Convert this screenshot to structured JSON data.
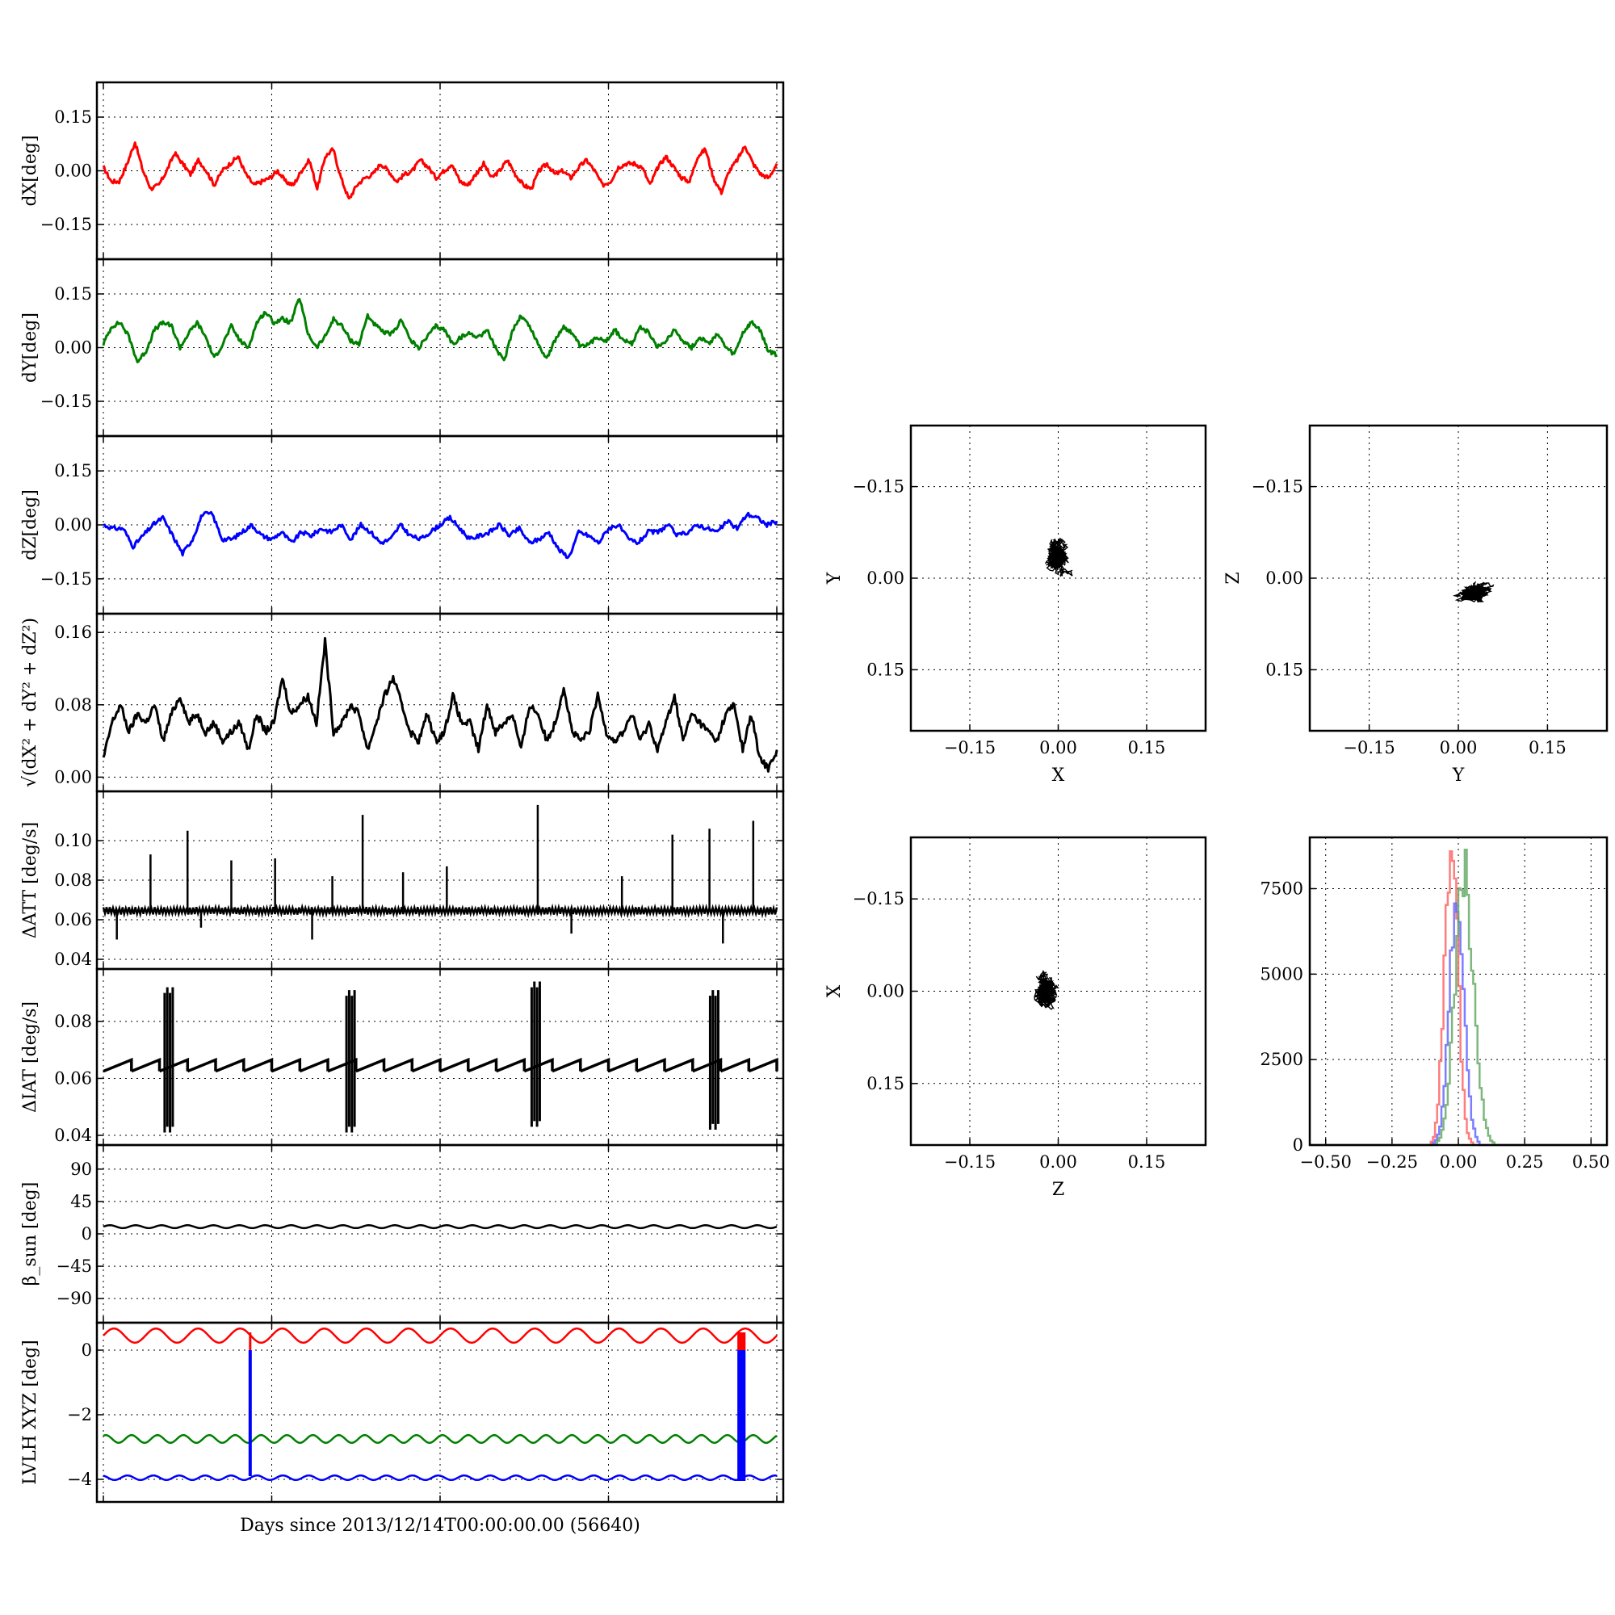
{
  "figure": {
    "xlabel": "Days since 2013/12/14T00:00:00.00 (56640)"
  },
  "chart_data": [
    {
      "type": "line",
      "ylabel": "dX[deg]",
      "yticks": [
        "0.15",
        "0.00",
        "−0.15"
      ],
      "ytick_values": [
        0.15,
        0.0,
        -0.15
      ],
      "ylim": [
        -0.22,
        0.22
      ],
      "grid": true,
      "series": [
        {
          "color": "#ff0000",
          "values": [
            0.01,
            -0.03,
            -0.03,
            0.02,
            0.08,
            0.0,
            -0.05,
            -0.04,
            0.0,
            0.05,
            0.02,
            -0.01,
            0.03,
            0.0,
            -0.04,
            0.0,
            0.02,
            0.04,
            -0.01,
            -0.04,
            -0.03,
            -0.02,
            0.0,
            -0.03,
            -0.04,
            0.0,
            0.03,
            -0.05,
            0.04,
            0.06,
            -0.02,
            -0.08,
            -0.04,
            -0.02,
            -0.01,
            0.02,
            0.0,
            -0.03,
            -0.01,
            0.0,
            0.03,
            0.01,
            -0.02,
            0.0,
            0.02,
            -0.03,
            -0.04,
            -0.01,
            0.02,
            -0.02,
            0.0,
            0.03,
            -0.01,
            -0.04,
            -0.05,
            0.0,
            0.02,
            -0.01,
            0.0,
            -0.02,
            0.01,
            0.03,
            0.0,
            -0.04,
            -0.03,
            0.01,
            0.02,
            0.02,
            0.01,
            -0.04,
            0.01,
            0.04,
            0.01,
            -0.02,
            -0.03,
            0.04,
            0.06,
            -0.02,
            -0.06,
            0.0,
            0.03,
            0.07,
            0.02,
            -0.01,
            -0.02,
            0.02
          ]
        }
      ]
    },
    {
      "type": "line",
      "ylabel": "dY[deg]",
      "yticks": [
        "0.15",
        "0.00",
        "−0.15"
      ],
      "ytick_values": [
        0.15,
        0.0,
        -0.15
      ],
      "ylim": [
        -0.22,
        0.22
      ],
      "grid": true,
      "series": [
        {
          "color": "#008000",
          "values": [
            0.01,
            0.06,
            0.07,
            0.03,
            -0.04,
            -0.01,
            0.05,
            0.07,
            0.06,
            0.0,
            0.04,
            0.07,
            0.03,
            -0.03,
            0.01,
            0.06,
            0.02,
            0.0,
            0.07,
            0.1,
            0.07,
            0.08,
            0.07,
            0.14,
            0.04,
            0.0,
            0.03,
            0.08,
            0.06,
            0.02,
            0.01,
            0.09,
            0.06,
            0.04,
            0.04,
            0.08,
            0.02,
            0.0,
            0.03,
            0.06,
            0.05,
            0.01,
            0.03,
            0.04,
            0.03,
            0.05,
            0.0,
            -0.04,
            0.05,
            0.09,
            0.06,
            0.01,
            -0.03,
            0.02,
            0.06,
            0.04,
            0.0,
            0.01,
            0.03,
            0.02,
            0.05,
            0.02,
            0.01,
            0.06,
            0.04,
            0.0,
            0.02,
            0.05,
            0.02,
            0.0,
            0.03,
            0.01,
            0.04,
            0.0,
            -0.02,
            0.04,
            0.07,
            0.05,
            -0.01,
            -0.02
          ]
        }
      ]
    },
    {
      "type": "line",
      "ylabel": "dZ[deg]",
      "yticks": [
        "0.15",
        "0.00",
        "−0.15"
      ],
      "ytick_values": [
        0.15,
        0.0,
        -0.15
      ],
      "ylim": [
        -0.22,
        0.22
      ],
      "grid": true,
      "series": [
        {
          "color": "#0000ff",
          "values": [
            0.0,
            -0.01,
            -0.01,
            -0.06,
            -0.03,
            0.0,
            0.02,
            -0.03,
            -0.08,
            -0.04,
            0.03,
            0.03,
            -0.04,
            -0.04,
            -0.02,
            0.0,
            -0.03,
            -0.04,
            -0.02,
            -0.05,
            -0.02,
            -0.03,
            -0.01,
            -0.02,
            0.0,
            -0.04,
            0.0,
            -0.02,
            -0.05,
            -0.04,
            0.0,
            -0.03,
            -0.04,
            -0.02,
            0.0,
            0.02,
            -0.01,
            -0.04,
            -0.03,
            -0.02,
            0.0,
            -0.03,
            -0.01,
            -0.05,
            -0.04,
            -0.02,
            -0.07,
            -0.09,
            -0.02,
            -0.03,
            -0.05,
            -0.01,
            0.0,
            -0.04,
            -0.05,
            -0.02,
            -0.02,
            0.0,
            -0.03,
            -0.02,
            0.0,
            -0.01,
            -0.02,
            0.01,
            -0.01,
            0.03,
            0.02,
            0.0,
            0.01
          ]
        }
      ]
    },
    {
      "type": "line",
      "ylabel": "√(dX² + dY² + dZ²)",
      "yticks": [
        "0.16",
        "0.08",
        "0.00"
      ],
      "ytick_values": [
        0.16,
        0.08,
        0.0
      ],
      "ylim": [
        -0.005,
        0.17
      ],
      "grid": true,
      "series": [
        {
          "color": "#000000",
          "values": [
            0.02,
            0.06,
            0.08,
            0.05,
            0.07,
            0.06,
            0.08,
            0.04,
            0.07,
            0.09,
            0.06,
            0.07,
            0.05,
            0.06,
            0.04,
            0.05,
            0.06,
            0.03,
            0.07,
            0.05,
            0.06,
            0.11,
            0.07,
            0.08,
            0.09,
            0.06,
            0.15,
            0.05,
            0.06,
            0.08,
            0.07,
            0.03,
            0.06,
            0.09,
            0.11,
            0.08,
            0.05,
            0.04,
            0.07,
            0.04,
            0.05,
            0.09,
            0.06,
            0.06,
            0.03,
            0.08,
            0.05,
            0.06,
            0.07,
            0.03,
            0.08,
            0.07,
            0.04,
            0.06,
            0.1,
            0.05,
            0.04,
            0.05,
            0.09,
            0.05,
            0.04,
            0.05,
            0.07,
            0.04,
            0.06,
            0.03,
            0.06,
            0.09,
            0.04,
            0.07,
            0.06,
            0.05,
            0.04,
            0.07,
            0.08,
            0.03,
            0.07,
            0.02,
            0.01,
            0.03
          ]
        }
      ]
    },
    {
      "type": "line",
      "ylabel": "ΔATT [deg/s]",
      "yticks": [
        "0.10",
        "0.08",
        "0.06",
        "0.04"
      ],
      "ytick_values": [
        0.1,
        0.08,
        0.06,
        0.04
      ],
      "ylim": [
        0.04,
        0.12
      ],
      "grid": true,
      "baseline": 0.0645,
      "spikes": [
        [
          0.07,
          0.093
        ],
        [
          0.125,
          0.105
        ],
        [
          0.19,
          0.09
        ],
        [
          0.255,
          0.091
        ],
        [
          0.34,
          0.082
        ],
        [
          0.385,
          0.113
        ],
        [
          0.445,
          0.084
        ],
        [
          0.51,
          0.087
        ],
        [
          0.645,
          0.118
        ],
        [
          0.77,
          0.082
        ],
        [
          0.845,
          0.103
        ],
        [
          0.9,
          0.106
        ],
        [
          0.965,
          0.11
        ],
        [
          0.02,
          0.05
        ],
        [
          0.145,
          0.056
        ],
        [
          0.31,
          0.05
        ],
        [
          0.695,
          0.053
        ],
        [
          0.92,
          0.048
        ]
      ],
      "series": [
        {
          "color": "#000000"
        }
      ]
    },
    {
      "type": "line",
      "ylabel": "ΔIAT [deg/s]",
      "yticks": [
        "0.08",
        "0.06",
        "0.04"
      ],
      "ytick_values": [
        0.08,
        0.06,
        0.04
      ],
      "ylim": [
        0.04,
        0.095
      ],
      "grid": true,
      "baseline": 0.0645,
      "bursts": [
        [
          0.095,
          0.092,
          0.041
        ],
        [
          0.365,
          0.091,
          0.041
        ],
        [
          0.64,
          0.094,
          0.043
        ],
        [
          0.905,
          0.091,
          0.042
        ]
      ],
      "series": [
        {
          "color": "#000000"
        }
      ]
    },
    {
      "type": "line",
      "ylabel": "β_sun [deg]",
      "yticks": [
        "90",
        "45",
        "0",
        "−45",
        "−90"
      ],
      "ytick_values": [
        90,
        45,
        0,
        -45,
        -90
      ],
      "ylim": [
        -110,
        110
      ],
      "grid": true,
      "series": [
        {
          "color": "#000000",
          "mean": 10,
          "amplitude": 2,
          "cycles": 26
        }
      ]
    },
    {
      "type": "line",
      "ylabel": "LVLH XYZ [deg]",
      "yticks": [
        "0",
        "−2",
        "−4"
      ],
      "ytick_values": [
        0,
        -2,
        -4
      ],
      "ylim": [
        -4.4,
        0.55
      ],
      "grid": true,
      "series": [
        {
          "color": "#ff0000",
          "mean": 0.45,
          "amplitude": 0.22,
          "cycles": 16
        },
        {
          "color": "#008000",
          "mean": -2.75,
          "amplitude": 0.12,
          "cycles": 26
        },
        {
          "color": "#0000ff",
          "mean": -3.95,
          "amplitude": 0.07,
          "cycles": 26
        }
      ],
      "spikes": [
        [
          0.218,
          0.0,
          -3.9
        ],
        [
          0.945,
          0.0,
          -4.05
        ],
        [
          0.95,
          0.0,
          -4.05
        ]
      ]
    },
    {
      "type": "scatter",
      "xlabel": "X",
      "ylabel": "Y",
      "xticks": [
        "−0.15",
        "0.00",
        "0.15"
      ],
      "yticks": [
        "0.15",
        "0.00",
        "−0.15"
      ],
      "tick_values": [
        -0.15,
        0.0,
        0.15
      ],
      "xlim": [
        -0.25,
        0.25
      ],
      "ylim": [
        -0.25,
        0.25
      ],
      "grid": true,
      "cluster": {
        "center": [
          0.0,
          0.035
        ],
        "spread": [
          0.03,
          0.035
        ],
        "color": "#000000"
      }
    },
    {
      "type": "scatter",
      "xlabel": "Y",
      "ylabel": "Z",
      "xticks": [
        "−0.15",
        "0.00",
        "0.15"
      ],
      "yticks": [
        "0.15",
        "0.00",
        "−0.15"
      ],
      "tick_values": [
        -0.15,
        0.0,
        0.15
      ],
      "xlim": [
        -0.25,
        0.25
      ],
      "ylim": [
        -0.25,
        0.25
      ],
      "grid": true,
      "cluster": {
        "center": [
          0.025,
          -0.025
        ],
        "spread": [
          0.035,
          0.022
        ],
        "color": "#000000"
      }
    },
    {
      "type": "scatter",
      "xlabel": "Z",
      "ylabel": "X",
      "xticks": [
        "−0.15",
        "0.00",
        "0.15"
      ],
      "yticks": [
        "0.15",
        "0.00",
        "−0.15"
      ],
      "tick_values": [
        -0.15,
        0.0,
        0.15
      ],
      "xlim": [
        -0.25,
        0.25
      ],
      "ylim": [
        -0.25,
        0.25
      ],
      "grid": true,
      "cluster": {
        "center": [
          -0.02,
          0.0
        ],
        "spread": [
          0.025,
          0.035
        ],
        "color": "#000000"
      }
    },
    {
      "type": "histogram",
      "xticks": [
        "−0.50",
        "−0.25",
        "0.00",
        "0.25",
        "0.50"
      ],
      "xtick_values": [
        -0.5,
        -0.25,
        0.0,
        0.25,
        0.5
      ],
      "yticks": [
        "7500",
        "5000",
        "2500",
        "0"
      ],
      "ytick_values": [
        7500,
        5000,
        2500,
        0
      ],
      "xlim": [
        -0.56,
        0.56
      ],
      "ylim": [
        0,
        9000
      ],
      "grid": true,
      "series": [
        {
          "color": "#ff6666",
          "center": -0.03,
          "width": 0.025,
          "peak": 8800
        },
        {
          "color": "#6666ff",
          "center": -0.01,
          "width": 0.028,
          "peak": 7300
        },
        {
          "color": "#66aa66",
          "center": 0.02,
          "width": 0.035,
          "peak": 7900
        }
      ]
    }
  ]
}
